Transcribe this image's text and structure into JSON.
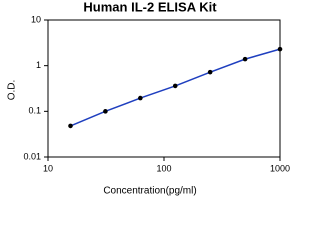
{
  "chart_data": {
    "type": "scatter",
    "title": "Human IL-2 ELISA Kit",
    "x_label": "Concentration(pg/ml)",
    "y_label": "O.D.",
    "xscale": "log",
    "yscale": "log",
    "x": [
      15.63,
      31.25,
      62.5,
      125,
      250,
      500,
      1000
    ],
    "series": [
      {
        "color": "#000000",
        "line_color": "#1f3fbf",
        "values": [
          0.048,
          0.1,
          0.195,
          0.36,
          0.72,
          1.39,
          2.3
        ]
      }
    ],
    "xlim": [
      10,
      1000
    ],
    "xticks": [
      10,
      100,
      1000
    ],
    "ylim": [
      0.01,
      10
    ],
    "yticks": [
      0.01,
      0.1,
      1,
      10
    ]
  }
}
